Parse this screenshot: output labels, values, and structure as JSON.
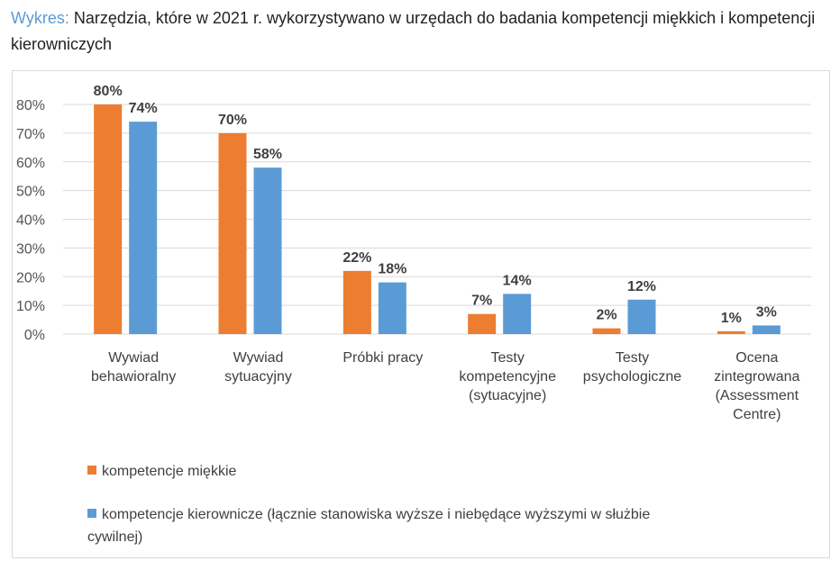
{
  "title_lead": "Wykres:",
  "title_text": " Narzędzia, które w 2021 r. wykorzystywano w urzędach do badania kompetencji miękkich i kompetencji kierowniczych",
  "chart_data": {
    "type": "bar",
    "categories": [
      [
        "Wywiad",
        "behawioralny"
      ],
      [
        "Wywiad",
        "sytuacyjny"
      ],
      [
        "Próbki pracy"
      ],
      [
        "Testy",
        "kompetencyjne",
        "(sytuacyjne)"
      ],
      [
        "Testy",
        "psychologiczne"
      ],
      [
        "Ocena",
        "zintegrowana",
        "(Assessment",
        "Centre)"
      ]
    ],
    "series": [
      {
        "name": "kompetencje miękkie",
        "color": "#ed7d31",
        "values": [
          80,
          70,
          22,
          7,
          2,
          1
        ]
      },
      {
        "name": "kompetencje kierownicze (łącznie stanowiska wyższe i niebędące wyższymi w służbie cywilnej)",
        "legend_lines": [
          "kompetencje kierownicze (łącznie stanowiska wyższe i niebędące wyższymi w służbie",
          "cywilnej)"
        ],
        "color": "#5b9bd5",
        "values": [
          74,
          58,
          18,
          14,
          12,
          3
        ]
      }
    ],
    "yticks": [
      "0%",
      "10%",
      "20%",
      "30%",
      "40%",
      "50%",
      "60%",
      "70%",
      "80%"
    ],
    "ylim": [
      0,
      80
    ],
    "grid": true,
    "legend_position": "bottom"
  }
}
